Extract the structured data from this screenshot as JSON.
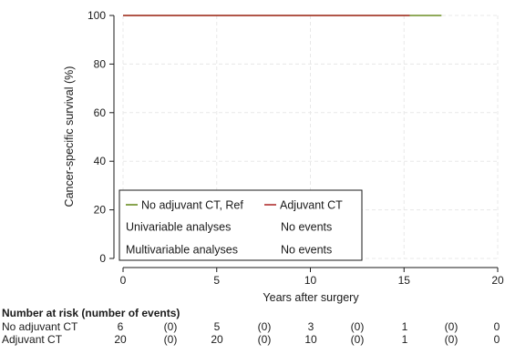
{
  "chart_data": {
    "type": "line",
    "xlabel": "Years after surgery",
    "ylabel": "Cancer-specific survival (%)",
    "xlim": [
      0,
      20
    ],
    "ylim": [
      0,
      100
    ],
    "x_ticks": [
      "0",
      "5",
      "10",
      "15",
      "20"
    ],
    "y_ticks": [
      "0",
      "20",
      "40",
      "60",
      "80",
      "100"
    ],
    "grid": true,
    "series": [
      {
        "name": "No adjuvant CT, Ref",
        "color": "#6b8e23",
        "x": [
          0,
          17
        ],
        "y": [
          100,
          100
        ]
      },
      {
        "name": "Adjuvant CT",
        "color": "#b03030",
        "x": [
          0,
          15.3
        ],
        "y": [
          100,
          100
        ]
      }
    ],
    "legend": {
      "placement": "bottom-left",
      "entries": [
        "No adjuvant CT, Ref",
        "Adjuvant CT"
      ],
      "rows": [
        {
          "label": "Univariable analyses",
          "value": "No events"
        },
        {
          "label": "Multivariable analyses",
          "value": "No events"
        }
      ]
    },
    "risk_table": {
      "title": "Number at risk (number of events)",
      "rows": [
        {
          "label": "No adjuvant CT",
          "cells": [
            "6",
            "(0)",
            "5",
            "(0)",
            "3",
            "(0)",
            "1",
            "(0)",
            "0"
          ]
        },
        {
          "label": "Adjuvant CT",
          "cells": [
            "20",
            "(0)",
            "20",
            "(0)",
            "10",
            "(0)",
            "1",
            "(0)",
            "0"
          ]
        }
      ]
    }
  }
}
